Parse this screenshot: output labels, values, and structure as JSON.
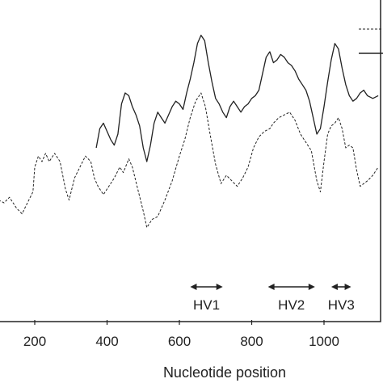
{
  "chart_data": {
    "type": "line",
    "xlabel": "Nucleotide position",
    "ylabel": "",
    "title": "",
    "xlim": [
      100,
      1150
    ],
    "ylim": [
      0,
      1
    ],
    "x_ticks": [
      200,
      400,
      600,
      800,
      1000
    ],
    "grid": false,
    "legend": "top-right",
    "series": [
      {
        "style": "dashed",
        "points": [
          [
            100,
            0.36
          ],
          [
            115,
            0.35
          ],
          [
            130,
            0.37
          ],
          [
            150,
            0.33
          ],
          [
            165,
            0.31
          ],
          [
            180,
            0.35
          ],
          [
            195,
            0.39
          ],
          [
            200,
            0.48
          ],
          [
            210,
            0.52
          ],
          [
            220,
            0.5
          ],
          [
            230,
            0.53
          ],
          [
            240,
            0.5
          ],
          [
            255,
            0.53
          ],
          [
            270,
            0.5
          ],
          [
            285,
            0.4
          ],
          [
            295,
            0.36
          ],
          [
            310,
            0.44
          ],
          [
            325,
            0.48
          ],
          [
            340,
            0.52
          ],
          [
            355,
            0.5
          ],
          [
            365,
            0.44
          ],
          [
            375,
            0.41
          ],
          [
            390,
            0.38
          ],
          [
            405,
            0.41
          ],
          [
            420,
            0.44
          ],
          [
            435,
            0.48
          ],
          [
            445,
            0.46
          ],
          [
            460,
            0.51
          ],
          [
            470,
            0.48
          ],
          [
            485,
            0.4
          ],
          [
            500,
            0.32
          ],
          [
            510,
            0.26
          ],
          [
            525,
            0.29
          ],
          [
            540,
            0.3
          ],
          [
            560,
            0.36
          ],
          [
            580,
            0.43
          ],
          [
            600,
            0.52
          ],
          [
            615,
            0.58
          ],
          [
            630,
            0.66
          ],
          [
            645,
            0.72
          ],
          [
            660,
            0.75
          ],
          [
            672,
            0.7
          ],
          [
            685,
            0.6
          ],
          [
            700,
            0.49
          ],
          [
            715,
            0.42
          ],
          [
            730,
            0.45
          ],
          [
            745,
            0.43
          ],
          [
            760,
            0.41
          ],
          [
            775,
            0.44
          ],
          [
            790,
            0.48
          ],
          [
            805,
            0.55
          ],
          [
            820,
            0.59
          ],
          [
            835,
            0.61
          ],
          [
            850,
            0.62
          ],
          [
            860,
            0.64
          ],
          [
            875,
            0.66
          ],
          [
            890,
            0.67
          ],
          [
            905,
            0.68
          ],
          [
            920,
            0.65
          ],
          [
            935,
            0.6
          ],
          [
            950,
            0.57
          ],
          [
            965,
            0.54
          ],
          [
            980,
            0.43
          ],
          [
            990,
            0.39
          ],
          [
            1000,
            0.5
          ],
          [
            1010,
            0.6
          ],
          [
            1020,
            0.63
          ],
          [
            1030,
            0.64
          ],
          [
            1040,
            0.66
          ],
          [
            1050,
            0.62
          ],
          [
            1060,
            0.55
          ],
          [
            1070,
            0.56
          ],
          [
            1080,
            0.55
          ],
          [
            1090,
            0.47
          ],
          [
            1100,
            0.41
          ],
          [
            1110,
            0.42
          ],
          [
            1120,
            0.43
          ],
          [
            1135,
            0.45
          ],
          [
            1150,
            0.48
          ]
        ]
      },
      {
        "style": "solid",
        "points": [
          [
            370,
            0.55
          ],
          [
            380,
            0.62
          ],
          [
            390,
            0.64
          ],
          [
            400,
            0.61
          ],
          [
            410,
            0.58
          ],
          [
            420,
            0.56
          ],
          [
            430,
            0.6
          ],
          [
            440,
            0.71
          ],
          [
            450,
            0.75
          ],
          [
            460,
            0.74
          ],
          [
            470,
            0.7
          ],
          [
            480,
            0.67
          ],
          [
            490,
            0.63
          ],
          [
            500,
            0.55
          ],
          [
            510,
            0.5
          ],
          [
            520,
            0.56
          ],
          [
            530,
            0.64
          ],
          [
            540,
            0.68
          ],
          [
            550,
            0.66
          ],
          [
            560,
            0.64
          ],
          [
            570,
            0.67
          ],
          [
            580,
            0.7
          ],
          [
            590,
            0.72
          ],
          [
            600,
            0.71
          ],
          [
            610,
            0.69
          ],
          [
            620,
            0.75
          ],
          [
            630,
            0.8
          ],
          [
            640,
            0.86
          ],
          [
            650,
            0.93
          ],
          [
            660,
            0.96
          ],
          [
            670,
            0.94
          ],
          [
            680,
            0.86
          ],
          [
            690,
            0.79
          ],
          [
            700,
            0.73
          ],
          [
            710,
            0.71
          ],
          [
            720,
            0.68
          ],
          [
            730,
            0.66
          ],
          [
            740,
            0.7
          ],
          [
            750,
            0.72
          ],
          [
            760,
            0.7
          ],
          [
            770,
            0.68
          ],
          [
            780,
            0.7
          ],
          [
            790,
            0.71
          ],
          [
            800,
            0.73
          ],
          [
            810,
            0.74
          ],
          [
            820,
            0.76
          ],
          [
            830,
            0.82
          ],
          [
            840,
            0.88
          ],
          [
            850,
            0.9
          ],
          [
            860,
            0.86
          ],
          [
            870,
            0.87
          ],
          [
            880,
            0.89
          ],
          [
            890,
            0.88
          ],
          [
            900,
            0.86
          ],
          [
            910,
            0.85
          ],
          [
            920,
            0.83
          ],
          [
            930,
            0.8
          ],
          [
            940,
            0.78
          ],
          [
            950,
            0.76
          ],
          [
            960,
            0.72
          ],
          [
            970,
            0.66
          ],
          [
            980,
            0.6
          ],
          [
            990,
            0.62
          ],
          [
            1000,
            0.7
          ],
          [
            1010,
            0.79
          ],
          [
            1020,
            0.87
          ],
          [
            1030,
            0.93
          ],
          [
            1040,
            0.91
          ],
          [
            1050,
            0.84
          ],
          [
            1060,
            0.78
          ],
          [
            1070,
            0.74
          ],
          [
            1080,
            0.72
          ],
          [
            1090,
            0.73
          ],
          [
            1100,
            0.75
          ],
          [
            1110,
            0.76
          ],
          [
            1120,
            0.74
          ],
          [
            1135,
            0.73
          ],
          [
            1150,
            0.74
          ]
        ]
      }
    ],
    "regions": [
      {
        "label": "HV1",
        "start": 630,
        "end": 720
      },
      {
        "label": "HV2",
        "start": 845,
        "end": 975
      },
      {
        "label": "HV3",
        "start": 1020,
        "end": 1075
      }
    ]
  }
}
